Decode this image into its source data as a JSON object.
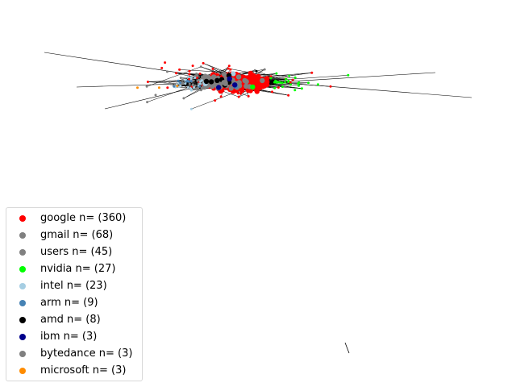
{
  "legend": [
    {
      "label": "google n= (360)",
      "color": "#ff0000",
      "count": 360
    },
    {
      "label": "gmail n= (68)",
      "color": "#808080",
      "count": 68
    },
    {
      "label": "users n= (45)",
      "color": "#808080",
      "count": 45
    },
    {
      "label": "nvidia n= (27)",
      "color": "#00ff00",
      "count": 27
    },
    {
      "label": "intel n= (23)",
      "color": "#a6cee3",
      "count": 23
    },
    {
      "label": "arm n= (9)",
      "color": "#4682b4",
      "count": 9
    },
    {
      "label": "amd n= (8)",
      "color": "#000000",
      "count": 8
    },
    {
      "label": "ibm n= (3)",
      "color": "#00008b",
      "count": 3
    },
    {
      "label": "bytedance n= (3)",
      "color": "#808080",
      "count": 3
    },
    {
      "label": "microsoft n= (3)",
      "color": "#ff8c00",
      "count": 3
    }
  ]
}
